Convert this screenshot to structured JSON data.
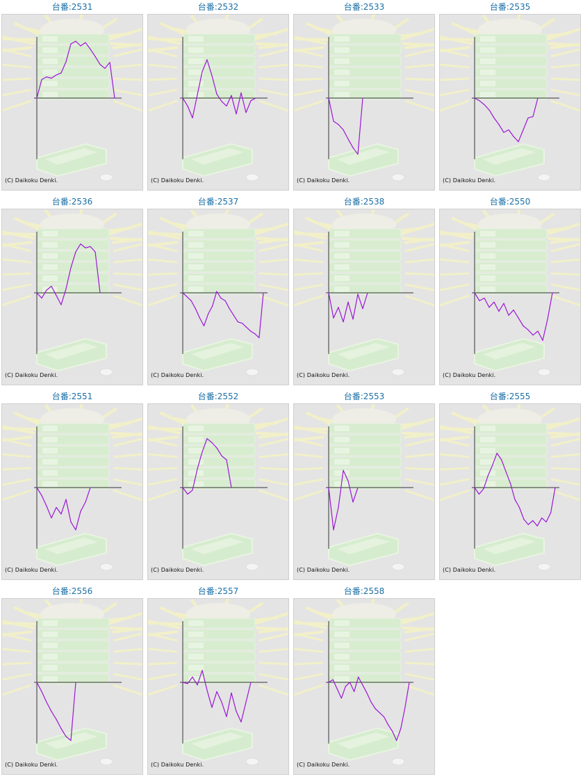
{
  "copyright": "(C) Daikoku Denki.",
  "colors": {
    "title": "#1a6fa6",
    "line": "#9a16d6",
    "axis": "#333333",
    "bg": "#e4e4e4"
  },
  "chart_data": [
    {
      "type": "line",
      "title": "台番:2531",
      "x": [
        0,
        1,
        2,
        3,
        4,
        5,
        6,
        7,
        8,
        9,
        10,
        11,
        12,
        13,
        14,
        15,
        16
      ],
      "y": [
        0,
        28,
        32,
        30,
        35,
        38,
        55,
        82,
        86,
        79,
        84,
        74,
        63,
        51,
        45,
        54,
        0
      ]
    },
    {
      "type": "line",
      "title": "台番:2532",
      "x": [
        0,
        1,
        2,
        3,
        4,
        5,
        6,
        7,
        8,
        9,
        10,
        11,
        12,
        13,
        14,
        15
      ],
      "y": [
        0,
        -12,
        -30,
        5,
        40,
        58,
        34,
        6,
        -5,
        -12,
        4,
        -24,
        8,
        -22,
        -4,
        0
      ]
    },
    {
      "type": "line",
      "title": "台番:2533",
      "x": [
        0,
        1,
        2,
        3,
        4,
        5,
        6,
        7
      ],
      "y": [
        0,
        -35,
        -40,
        -48,
        -62,
        -75,
        -85,
        0
      ]
    },
    {
      "type": "line",
      "title": "台番:2535",
      "x": [
        0,
        1,
        2,
        3,
        4,
        5,
        6,
        7,
        8,
        9,
        10,
        11,
        12,
        13
      ],
      "y": [
        0,
        -4,
        -10,
        -18,
        -30,
        -40,
        -52,
        -48,
        -58,
        -66,
        -48,
        -30,
        -28,
        0
      ]
    },
    {
      "type": "line",
      "title": "台番:2536",
      "x": [
        0,
        1,
        2,
        3,
        4,
        5,
        6,
        7,
        8,
        9,
        10,
        11,
        12,
        13
      ],
      "y": [
        0,
        -8,
        4,
        10,
        -4,
        -18,
        6,
        38,
        62,
        74,
        68,
        70,
        62,
        0
      ]
    },
    {
      "type": "line",
      "title": "台番:2537",
      "x": [
        0,
        1,
        2,
        3,
        4,
        5,
        6,
        7,
        8,
        9,
        10,
        11,
        12,
        13,
        14,
        15,
        16,
        17,
        18,
        19
      ],
      "y": [
        0,
        -6,
        -12,
        -24,
        -38,
        -50,
        -32,
        -20,
        2,
        -8,
        -12,
        -24,
        -34,
        -44,
        -46,
        -52,
        -58,
        -62,
        -68,
        0
      ]
    },
    {
      "type": "line",
      "title": "台番:2538",
      "x": [
        0,
        1,
        2,
        3,
        4,
        5,
        6,
        7,
        8
      ],
      "y": [
        0,
        -38,
        -22,
        -44,
        -14,
        -40,
        -2,
        -24,
        0
      ]
    },
    {
      "type": "line",
      "title": "台番:2550",
      "x": [
        0,
        1,
        2,
        3,
        4,
        5,
        6,
        7,
        8,
        9,
        10,
        11,
        12,
        13,
        14,
        15,
        16
      ],
      "y": [
        0,
        -12,
        -8,
        -22,
        -14,
        -28,
        -16,
        -34,
        -26,
        -38,
        -50,
        -56,
        -64,
        -58,
        -72,
        -40,
        0
      ]
    },
    {
      "type": "line",
      "title": "台番:2551",
      "x": [
        0,
        1,
        2,
        3,
        4,
        5,
        6,
        7,
        8,
        9,
        10,
        11
      ],
      "y": [
        0,
        -12,
        -28,
        -46,
        -30,
        -40,
        -18,
        -52,
        -64,
        -36,
        -22,
        0
      ]
    },
    {
      "type": "line",
      "title": "台番:2552",
      "x": [
        0,
        1,
        2,
        3,
        4,
        5,
        6,
        7,
        8,
        9,
        10
      ],
      "y": [
        0,
        -10,
        -4,
        28,
        54,
        74,
        68,
        60,
        48,
        42,
        0
      ]
    },
    {
      "type": "line",
      "title": "台番:2553",
      "x": [
        0,
        1,
        2,
        3,
        4,
        5,
        6
      ],
      "y": [
        0,
        -64,
        -30,
        26,
        10,
        -22,
        0
      ]
    },
    {
      "type": "line",
      "title": "台番:2555",
      "x": [
        0,
        1,
        2,
        3,
        4,
        5,
        6,
        7,
        8,
        9,
        10,
        11,
        12,
        13,
        14,
        15,
        16,
        17,
        18
      ],
      "y": [
        0,
        -10,
        -2,
        18,
        34,
        52,
        42,
        24,
        6,
        -18,
        -30,
        -48,
        -56,
        -50,
        -58,
        -46,
        -52,
        -38,
        0
      ]
    },
    {
      "type": "line",
      "title": "台番:2556",
      "x": [
        0,
        1,
        2,
        3,
        4,
        5,
        6,
        7,
        8
      ],
      "y": [
        0,
        -14,
        -30,
        -44,
        -56,
        -70,
        -82,
        -88,
        0
      ]
    },
    {
      "type": "line",
      "title": "台番:2557",
      "x": [
        0,
        1,
        2,
        3,
        4,
        5,
        6,
        7,
        8,
        9,
        10,
        11,
        12,
        13,
        14
      ],
      "y": [
        0,
        -2,
        8,
        -4,
        18,
        -12,
        -38,
        -14,
        -30,
        -52,
        -16,
        -44,
        -60,
        -30,
        0
      ]
    },
    {
      "type": "line",
      "title": "台番:2558",
      "x": [
        0,
        1,
        2,
        3,
        4,
        5,
        6,
        7,
        8,
        9,
        10,
        11,
        12,
        13,
        14,
        15,
        16,
        17,
        18,
        19
      ],
      "y": [
        0,
        4,
        -10,
        -24,
        -6,
        0,
        -14,
        8,
        -4,
        -16,
        -30,
        -40,
        -46,
        -52,
        -64,
        -74,
        -88,
        -70,
        -38,
        0
      ]
    }
  ]
}
